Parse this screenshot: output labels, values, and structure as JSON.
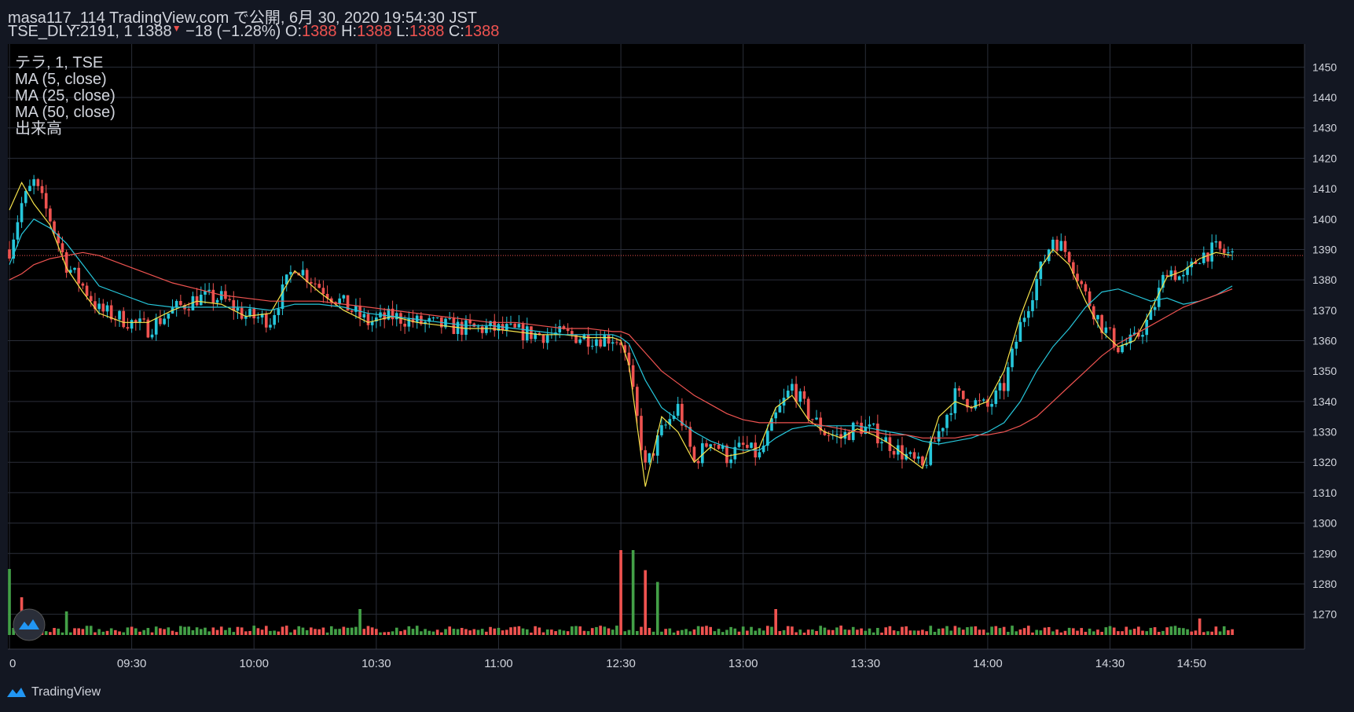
{
  "header": {
    "publish_line": "masa117_114 TradingView.com で公開, 6月 30, 2020 19:54:30 JST",
    "symbol": "TSE_DLY:2191, 1",
    "last": "1388",
    "change_arrow": "▼",
    "change": "−18 (−1.28%)",
    "o_label": "O:",
    "o_val": "1388",
    "h_label": "H:",
    "h_val": "1388",
    "l_label": "L:",
    "l_val": "1388",
    "c_label": "C:",
    "c_val": "1388"
  },
  "legend": [
    "テラ, 1, TSE",
    "MA (5, close)",
    "MA (25, close)",
    "MA (50, close)",
    "出来高"
  ],
  "footer": {
    "brand": "TradingView"
  },
  "colors": {
    "background": "#000000",
    "chrome": "#131722",
    "grid": "#2a2e39",
    "up": "#26c6da",
    "down": "#ef5350",
    "vol_up": "#43a047",
    "vol_down": "#ef5350",
    "ma5": "#f5e34a",
    "ma25": "#26c6da",
    "ma50": "#ef5350",
    "last_price": "#ef5350"
  },
  "chart_data": {
    "type": "candlestick",
    "y_ticks": [
      1270,
      1280,
      1290,
      1300,
      1310,
      1320,
      1330,
      1340,
      1350,
      1360,
      1370,
      1380,
      1390,
      1400,
      1410,
      1420,
      1430,
      1440,
      1450
    ],
    "ylim": [
      1265,
      1455
    ],
    "time_ticks": [
      "0",
      "09:30",
      "10:00",
      "10:30",
      "11:00",
      "12:30",
      "13:00",
      "13:30",
      "14:00",
      "14:30",
      "14:50"
    ],
    "time_tick_minutes": [
      0,
      30,
      60,
      90,
      120,
      150,
      180,
      210,
      240,
      270,
      290
    ],
    "session_minutes": 310,
    "last_price": "1388",
    "grid": true,
    "legend_position": "top-left",
    "price_path_minutes": [
      0,
      3,
      6,
      10,
      14,
      18,
      22,
      28,
      34,
      40,
      46,
      52,
      58,
      64,
      70,
      76,
      82,
      88,
      94,
      100,
      106,
      112,
      118,
      124,
      130,
      136,
      142,
      148,
      150,
      152,
      156,
      160,
      164,
      168,
      172,
      176,
      180,
      184,
      188,
      192,
      196,
      200,
      204,
      208,
      212,
      216,
      220,
      224,
      228,
      232,
      236,
      240,
      244,
      248,
      252,
      256,
      260,
      264,
      268,
      272,
      276,
      280,
      284,
      288,
      292,
      296,
      300
    ],
    "price_path_close": [
      1390,
      1405,
      1412,
      1400,
      1385,
      1378,
      1370,
      1367,
      1364,
      1370,
      1374,
      1374,
      1368,
      1367,
      1385,
      1378,
      1372,
      1366,
      1368,
      1366,
      1365,
      1364,
      1364,
      1363,
      1362,
      1362,
      1361,
      1361,
      1360,
      1350,
      1318,
      1330,
      1338,
      1320,
      1328,
      1322,
      1325,
      1322,
      1335,
      1345,
      1336,
      1330,
      1328,
      1332,
      1330,
      1326,
      1322,
      1318,
      1330,
      1342,
      1340,
      1338,
      1345,
      1365,
      1380,
      1394,
      1388,
      1375,
      1365,
      1358,
      1360,
      1368,
      1384,
      1380,
      1388,
      1390,
      1388
    ],
    "ma5_close": [
      1403,
      1412,
      1405,
      1398,
      1384,
      1376,
      1369,
      1366,
      1366,
      1370,
      1373,
      1372,
      1368,
      1369,
      1383,
      1376,
      1370,
      1366,
      1368,
      1366,
      1365,
      1364,
      1364,
      1363,
      1362,
      1362,
      1361,
      1361,
      1360,
      1352,
      1312,
      1335,
      1330,
      1320,
      1325,
      1322,
      1323,
      1325,
      1338,
      1342,
      1334,
      1330,
      1328,
      1331,
      1329,
      1326,
      1322,
      1318,
      1335,
      1340,
      1338,
      1340,
      1350,
      1368,
      1382,
      1390,
      1385,
      1373,
      1363,
      1358,
      1360,
      1370,
      1381,
      1383,
      1387,
      1389,
      1388
    ],
    "ma25_close": [
      1385,
      1395,
      1400,
      1397,
      1392,
      1385,
      1378,
      1375,
      1372,
      1371,
      1371,
      1371,
      1371,
      1370,
      1372,
      1372,
      1371,
      1369,
      1368,
      1367,
      1366,
      1365,
      1365,
      1364,
      1363,
      1362,
      1362,
      1362,
      1361,
      1359,
      1347,
      1338,
      1334,
      1330,
      1327,
      1325,
      1324,
      1324,
      1328,
      1331,
      1332,
      1332,
      1332,
      1332,
      1331,
      1330,
      1329,
      1327,
      1326,
      1327,
      1328,
      1330,
      1333,
      1340,
      1350,
      1358,
      1364,
      1371,
      1376,
      1377,
      1375,
      1373,
      1374,
      1372,
      1373,
      1375,
      1378
    ],
    "ma50_close": [
      1380,
      1382,
      1385,
      1387,
      1388,
      1389,
      1388,
      1385,
      1382,
      1379,
      1377,
      1375,
      1374,
      1373,
      1373,
      1373,
      1372,
      1371,
      1370,
      1369,
      1368,
      1367,
      1366,
      1366,
      1365,
      1364,
      1364,
      1363,
      1363,
      1362,
      1356,
      1350,
      1346,
      1342,
      1339,
      1336,
      1334,
      1333,
      1333,
      1333,
      1333,
      1332,
      1331,
      1330,
      1330,
      1329,
      1329,
      1328,
      1328,
      1328,
      1329,
      1329,
      1330,
      1332,
      1335,
      1340,
      1345,
      1350,
      1355,
      1359,
      1362,
      1365,
      1368,
      1371,
      1373,
      1375,
      1377
    ],
    "volume_spikes": [
      {
        "minute": 0,
        "rel": 0.56,
        "dir": "up"
      },
      {
        "minute": 3,
        "rel": 0.32,
        "dir": "down"
      },
      {
        "minute": 14,
        "rel": 0.2,
        "dir": "up"
      },
      {
        "minute": 86,
        "rel": 0.22,
        "dir": "up"
      },
      {
        "minute": 150,
        "rel": 0.72,
        "dir": "down"
      },
      {
        "minute": 153,
        "rel": 0.72,
        "dir": "up"
      },
      {
        "minute": 156,
        "rel": 0.55,
        "dir": "down"
      },
      {
        "minute": 159,
        "rel": 0.45,
        "dir": "up"
      },
      {
        "minute": 188,
        "rel": 0.22,
        "dir": "down"
      },
      {
        "minute": 292,
        "rel": 0.14,
        "dir": "down"
      }
    ]
  }
}
